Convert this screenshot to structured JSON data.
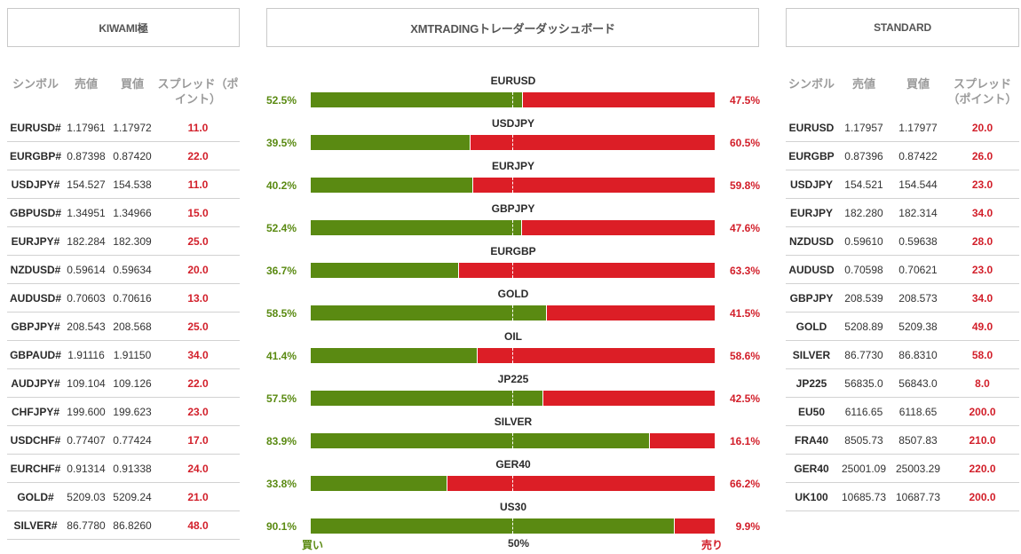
{
  "headers": {
    "kiwami": "KIWAMI極",
    "dashboard": "XMTRADINGトレーダーダッシュボード",
    "standard": "STANDARD"
  },
  "kiwami_table": {
    "columns": [
      "シンボル",
      "売値",
      "買値",
      "スプレッド（ポイント）"
    ],
    "rows": [
      {
        "symbol": "EURUSD#",
        "bid": "1.17961",
        "ask": "1.17972",
        "spread": "11.0"
      },
      {
        "symbol": "EURGBP#",
        "bid": "0.87398",
        "ask": "0.87420",
        "spread": "22.0"
      },
      {
        "symbol": "USDJPY#",
        "bid": "154.527",
        "ask": "154.538",
        "spread": "11.0"
      },
      {
        "symbol": "GBPUSD#",
        "bid": "1.34951",
        "ask": "1.34966",
        "spread": "15.0"
      },
      {
        "symbol": "EURJPY#",
        "bid": "182.284",
        "ask": "182.309",
        "spread": "25.0"
      },
      {
        "symbol": "NZDUSD#",
        "bid": "0.59614",
        "ask": "0.59634",
        "spread": "20.0"
      },
      {
        "symbol": "AUDUSD#",
        "bid": "0.70603",
        "ask": "0.70616",
        "spread": "13.0"
      },
      {
        "symbol": "GBPJPY#",
        "bid": "208.543",
        "ask": "208.568",
        "spread": "25.0"
      },
      {
        "symbol": "GBPAUD#",
        "bid": "1.91116",
        "ask": "1.91150",
        "spread": "34.0"
      },
      {
        "symbol": "AUDJPY#",
        "bid": "109.104",
        "ask": "109.126",
        "spread": "22.0"
      },
      {
        "symbol": "CHFJPY#",
        "bid": "199.600",
        "ask": "199.623",
        "spread": "23.0"
      },
      {
        "symbol": "USDCHF#",
        "bid": "0.77407",
        "ask": "0.77424",
        "spread": "17.0"
      },
      {
        "symbol": "EURCHF#",
        "bid": "0.91314",
        "ask": "0.91338",
        "spread": "24.0"
      },
      {
        "symbol": "GOLD#",
        "bid": "5209.03",
        "ask": "5209.24",
        "spread": "21.0"
      },
      {
        "symbol": "SILVER#",
        "bid": "86.7780",
        "ask": "86.8260",
        "spread": "48.0"
      }
    ]
  },
  "standard_table": {
    "columns": [
      "シンボル",
      "売値",
      "買値",
      "スプレッド（ポイント）"
    ],
    "rows": [
      {
        "symbol": "EURUSD",
        "bid": "1.17957",
        "ask": "1.17977",
        "spread": "20.0"
      },
      {
        "symbol": "EURGBP",
        "bid": "0.87396",
        "ask": "0.87422",
        "spread": "26.0"
      },
      {
        "symbol": "USDJPY",
        "bid": "154.521",
        "ask": "154.544",
        "spread": "23.0"
      },
      {
        "symbol": "EURJPY",
        "bid": "182.280",
        "ask": "182.314",
        "spread": "34.0"
      },
      {
        "symbol": "NZDUSD",
        "bid": "0.59610",
        "ask": "0.59638",
        "spread": "28.0"
      },
      {
        "symbol": "AUDUSD",
        "bid": "0.70598",
        "ask": "0.70621",
        "spread": "23.0"
      },
      {
        "symbol": "GBPJPY",
        "bid": "208.539",
        "ask": "208.573",
        "spread": "34.0"
      },
      {
        "symbol": "GOLD",
        "bid": "5208.89",
        "ask": "5209.38",
        "spread": "49.0"
      },
      {
        "symbol": "SILVER",
        "bid": "86.7730",
        "ask": "86.8310",
        "spread": "58.0"
      },
      {
        "symbol": "JP225",
        "bid": "56835.0",
        "ask": "56843.0",
        "spread": "8.0"
      },
      {
        "symbol": "EU50",
        "bid": "6116.65",
        "ask": "6118.65",
        "spread": "200.0"
      },
      {
        "symbol": "FRA40",
        "bid": "8505.73",
        "ask": "8507.83",
        "spread": "210.0"
      },
      {
        "symbol": "GER40",
        "bid": "25001.09",
        "ask": "25003.29",
        "spread": "220.0"
      },
      {
        "symbol": "UK100",
        "bid": "10685.73",
        "ask": "10687.73",
        "spread": "200.0"
      }
    ]
  },
  "sentiment": {
    "pairs": [
      {
        "name": "EURUSD",
        "buy": "52.5%",
        "sell": "47.5%",
        "buy_pct": 52.5
      },
      {
        "name": "USDJPY",
        "buy": "39.5%",
        "sell": "60.5%",
        "buy_pct": 39.5
      },
      {
        "name": "EURJPY",
        "buy": "40.2%",
        "sell": "59.8%",
        "buy_pct": 40.2
      },
      {
        "name": "GBPJPY",
        "buy": "52.4%",
        "sell": "47.6%",
        "buy_pct": 52.4
      },
      {
        "name": "EURGBP",
        "buy": "36.7%",
        "sell": "63.3%",
        "buy_pct": 36.7
      },
      {
        "name": "GOLD",
        "buy": "58.5%",
        "sell": "41.5%",
        "buy_pct": 58.5
      },
      {
        "name": "OIL",
        "buy": "41.4%",
        "sell": "58.6%",
        "buy_pct": 41.4
      },
      {
        "name": "JP225",
        "buy": "57.5%",
        "sell": "42.5%",
        "buy_pct": 57.5
      },
      {
        "name": "SILVER",
        "buy": "83.9%",
        "sell": "16.1%",
        "buy_pct": 83.9
      },
      {
        "name": "GER40",
        "buy": "33.8%",
        "sell": "66.2%",
        "buy_pct": 33.8
      },
      {
        "name": "US30",
        "buy": "90.1%",
        "sell": "9.9%",
        "buy_pct": 90.1
      }
    ],
    "footer": {
      "buy": "買い",
      "mid": "50%",
      "sell": "売り"
    },
    "colors": {
      "buy": "#5a8a12",
      "sell": "#dc1e26"
    }
  }
}
